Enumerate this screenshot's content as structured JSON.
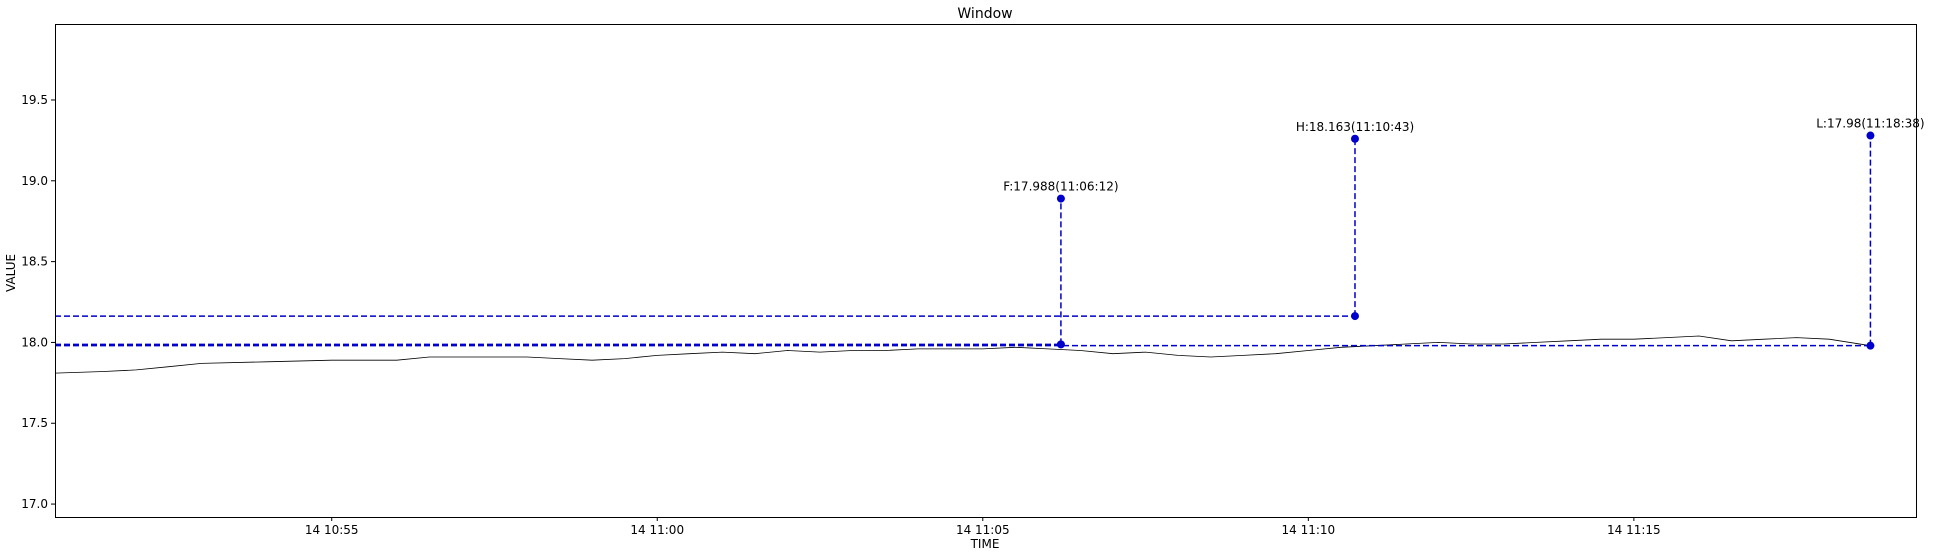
{
  "chart_data": {
    "type": "line",
    "title": "Window",
    "xlabel": "TIME",
    "ylabel": "VALUE",
    "ylim": [
      16.92,
      19.97
    ],
    "xlim": [
      "10:50:45",
      "11:19:20"
    ],
    "x_ticks": [
      {
        "time": "10:55:00",
        "label": "14 10:55"
      },
      {
        "time": "11:00:00",
        "label": "14 11:00"
      },
      {
        "time": "11:05:00",
        "label": "14 11:05"
      },
      {
        "time": "11:10:00",
        "label": "14 11:10"
      },
      {
        "time": "11:15:00",
        "label": "14 11:15"
      }
    ],
    "y_ticks": [
      {
        "value": 17.0,
        "label": "17.0"
      },
      {
        "value": 17.5,
        "label": "17.5"
      },
      {
        "value": 18.0,
        "label": "18.0"
      },
      {
        "value": 18.5,
        "label": "18.5"
      },
      {
        "value": 19.0,
        "label": "19.0"
      },
      {
        "value": 19.5,
        "label": "19.5"
      }
    ],
    "grid": false,
    "series": [
      {
        "color": "#000000",
        "points": [
          [
            "10:50:45",
            17.81
          ],
          [
            "10:51:30",
            17.82
          ],
          [
            "10:52:00",
            17.83
          ],
          [
            "10:52:30",
            17.85
          ],
          [
            "10:53:00",
            17.87
          ],
          [
            "10:54:00",
            17.88
          ],
          [
            "10:55:00",
            17.89
          ],
          [
            "10:56:00",
            17.89
          ],
          [
            "10:56:30",
            17.91
          ],
          [
            "10:57:00",
            17.91
          ],
          [
            "10:58:00",
            17.91
          ],
          [
            "10:58:30",
            17.9
          ],
          [
            "10:59:00",
            17.89
          ],
          [
            "10:59:30",
            17.9
          ],
          [
            "11:00:00",
            17.92
          ],
          [
            "11:00:30",
            17.93
          ],
          [
            "11:01:00",
            17.94
          ],
          [
            "11:01:30",
            17.93
          ],
          [
            "11:02:00",
            17.95
          ],
          [
            "11:02:30",
            17.94
          ],
          [
            "11:03:00",
            17.95
          ],
          [
            "11:03:30",
            17.95
          ],
          [
            "11:04:00",
            17.96
          ],
          [
            "11:04:30",
            17.96
          ],
          [
            "11:05:00",
            17.96
          ],
          [
            "11:05:30",
            17.97
          ],
          [
            "11:06:00",
            17.96
          ],
          [
            "11:06:30",
            17.95
          ],
          [
            "11:07:00",
            17.93
          ],
          [
            "11:07:30",
            17.94
          ],
          [
            "11:08:00",
            17.92
          ],
          [
            "11:08:30",
            17.91
          ],
          [
            "11:09:00",
            17.92
          ],
          [
            "11:09:30",
            17.93
          ],
          [
            "11:10:00",
            17.95
          ],
          [
            "11:10:30",
            17.97
          ],
          [
            "11:11:00",
            17.98
          ],
          [
            "11:11:30",
            17.99
          ],
          [
            "11:12:00",
            18.0
          ],
          [
            "11:12:30",
            17.99
          ],
          [
            "11:13:00",
            17.99
          ],
          [
            "11:13:30",
            18.0
          ],
          [
            "11:14:00",
            18.01
          ],
          [
            "11:14:30",
            18.02
          ],
          [
            "11:15:00",
            18.02
          ],
          [
            "11:15:30",
            18.03
          ],
          [
            "11:16:00",
            18.04
          ],
          [
            "11:16:30",
            18.01
          ],
          [
            "11:17:00",
            18.02
          ],
          [
            "11:17:30",
            18.03
          ],
          [
            "11:18:00",
            18.02
          ],
          [
            "11:18:38",
            17.98
          ]
        ]
      }
    ],
    "markers": [
      {
        "time": "11:06:12",
        "value": 17.988,
        "label": "F:17.988(11:06:12)",
        "label_value": 18.89
      },
      {
        "time": "11:10:43",
        "value": 18.163,
        "label": "H:18.163(11:10:43)",
        "label_value": 19.26
      },
      {
        "time": "11:18:38",
        "value": 17.98,
        "label": "L:17.98(11:18:38)",
        "label_value": 19.28
      }
    ],
    "marker_color": "#0000cc"
  }
}
